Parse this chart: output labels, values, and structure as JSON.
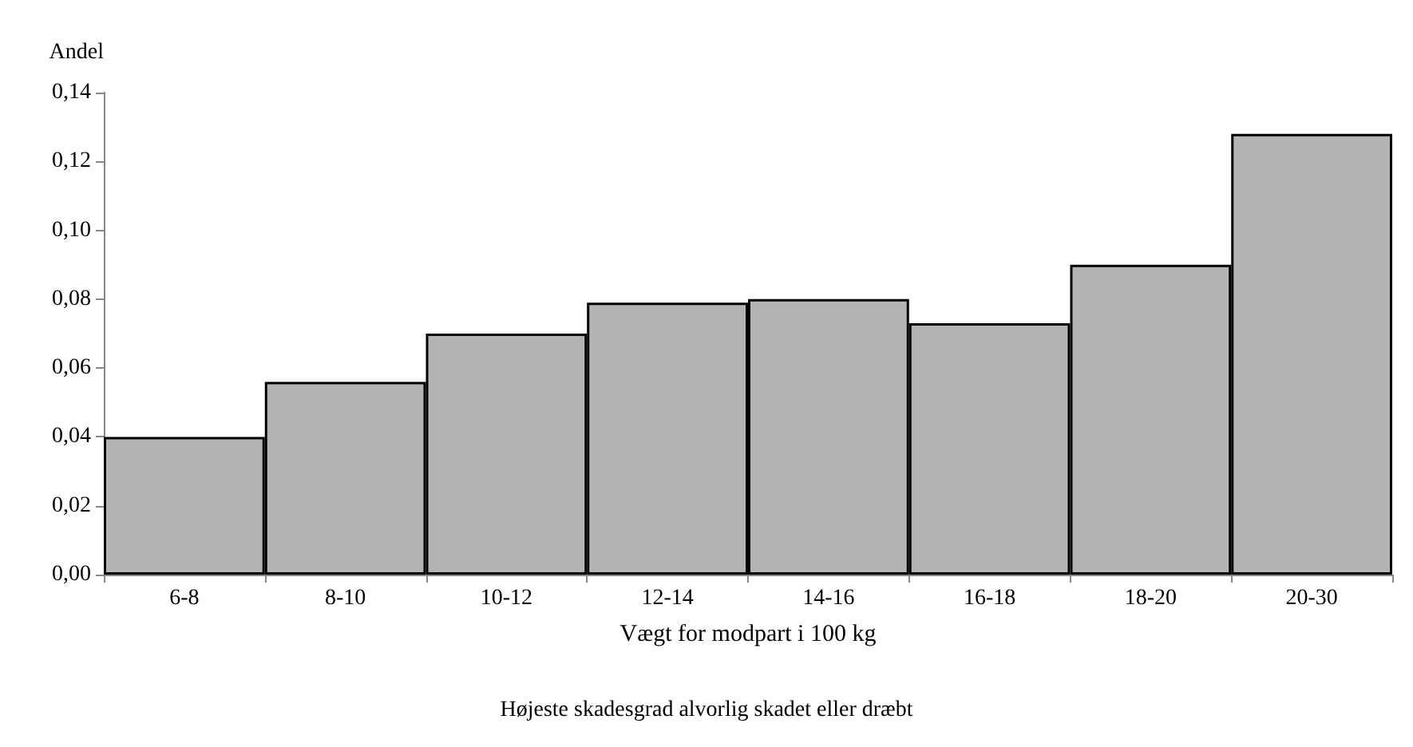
{
  "chart_data": {
    "type": "bar",
    "ylabel": "Andel",
    "xlabel": "Vægt for modpart i 100 kg",
    "annotations": [
      "Højeste skadesgrad alvorlig skadet eller dræbt"
    ],
    "categories": [
      "6-8",
      "8-10",
      "10-12",
      "12-14",
      "14-16",
      "16-18",
      "18-20",
      "20-30"
    ],
    "values": [
      0.04,
      0.056,
      0.07,
      0.079,
      0.08,
      0.073,
      0.09,
      0.128
    ],
    "color": "#b4b4b4",
    "ylim": [
      0,
      0.14
    ],
    "yticks": [
      {
        "value": 0,
        "label": "0,00"
      },
      {
        "value": 0.02,
        "label": "0,02"
      },
      {
        "value": 0.04,
        "label": "0,04"
      },
      {
        "value": 0.06,
        "label": "0,06"
      },
      {
        "value": 0.08,
        "label": "0,08"
      },
      {
        "value": 0.1,
        "label": "0,10"
      },
      {
        "value": 0.12,
        "label": "0,12"
      },
      {
        "value": 0.14,
        "label": "0,14"
      }
    ],
    "grid": false
  }
}
